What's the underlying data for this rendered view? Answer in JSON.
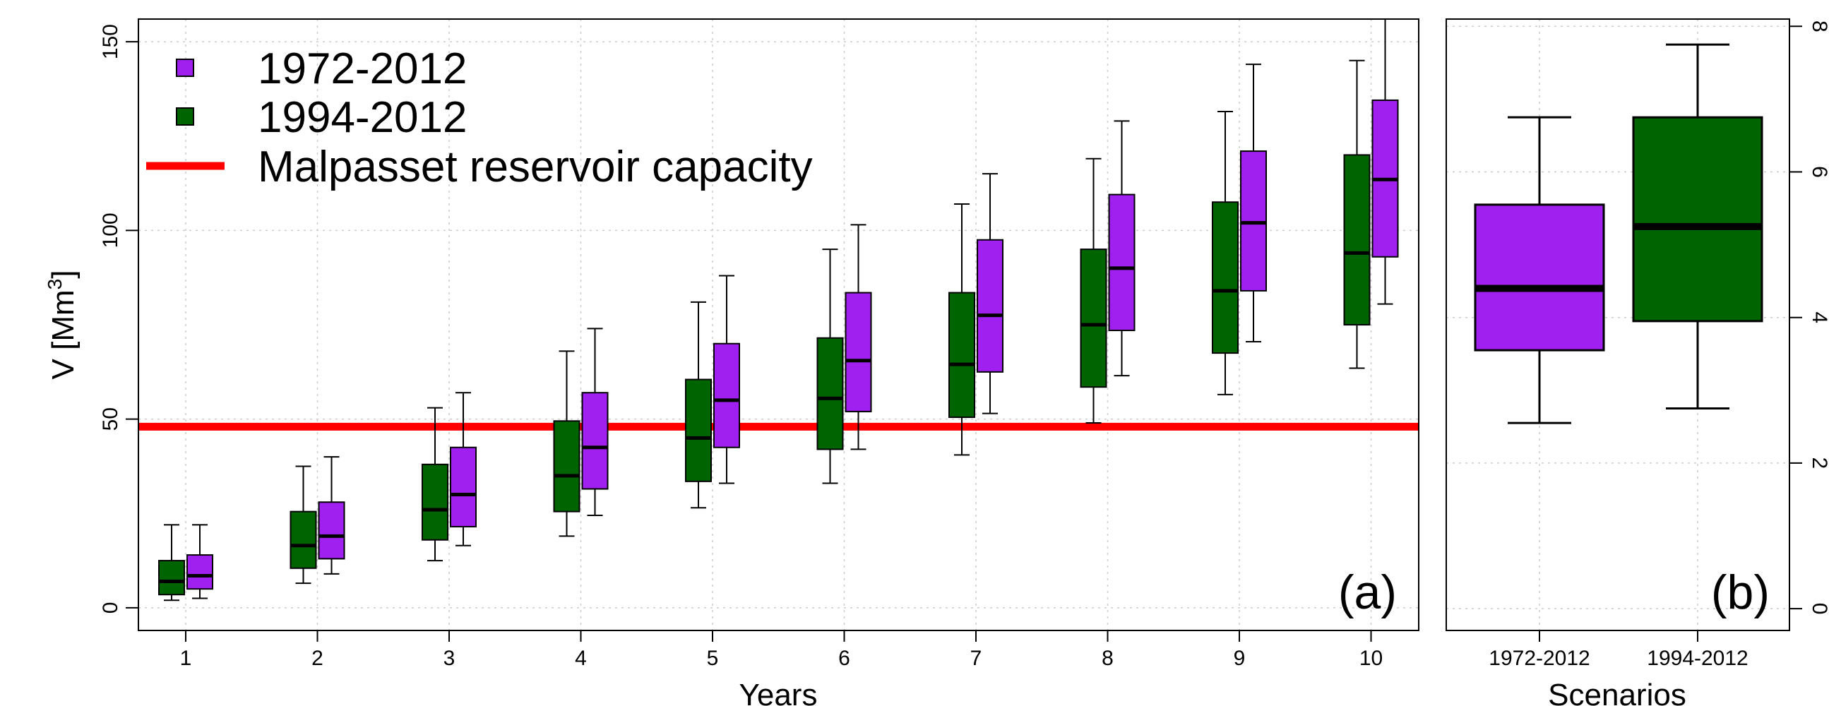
{
  "chart_data": [
    {
      "type": "boxplot",
      "panel_label": "(a)",
      "xlabel": "Years",
      "ylabel": "V [Mm3]",
      "ylim": [
        -6,
        156
      ],
      "yticks": [
        "0",
        "50",
        "100",
        "150"
      ],
      "categories": [
        "1",
        "2",
        "3",
        "4",
        "5",
        "6",
        "7",
        "8",
        "9",
        "10"
      ],
      "grid": true,
      "legend_position": "top-left",
      "legend": [
        {
          "label": "1972-2012",
          "color": "#a020f0",
          "kind": "box"
        },
        {
          "label": "1994-2012",
          "color": "#006400",
          "kind": "box"
        },
        {
          "label": "Malpasset reservoir capacity",
          "color": "#ff0000",
          "kind": "line"
        }
      ],
      "reference_line": {
        "label": "Malpasset reservoir capacity",
        "value": 48,
        "color": "#ff0000"
      },
      "series": [
        {
          "name": "1994-2012",
          "color": "#006400",
          "boxes": [
            {
              "min": 2,
              "q1": 3.5,
              "median": 7,
              "q3": 12.5,
              "max": 22
            },
            {
              "min": 6.5,
              "q1": 10.5,
              "median": 16.5,
              "q3": 25.5,
              "max": 37.5
            },
            {
              "min": 12.5,
              "q1": 18,
              "median": 26,
              "q3": 38,
              "max": 53
            },
            {
              "min": 19,
              "q1": 25.5,
              "median": 35,
              "q3": 49.5,
              "max": 68
            },
            {
              "min": 26.5,
              "q1": 33.5,
              "median": 45,
              "q3": 60.5,
              "max": 81
            },
            {
              "min": 33,
              "q1": 42,
              "median": 55.5,
              "q3": 71.5,
              "max": 95
            },
            {
              "min": 40.5,
              "q1": 50.5,
              "median": 64.5,
              "q3": 83.5,
              "max": 107
            },
            {
              "min": 49,
              "q1": 58.5,
              "median": 75,
              "q3": 95,
              "max": 119
            },
            {
              "min": 56.5,
              "q1": 67.5,
              "median": 84,
              "q3": 107.5,
              "max": 131.5
            },
            {
              "min": 63.5,
              "q1": 75,
              "median": 94,
              "q3": 120,
              "max": 145
            }
          ]
        },
        {
          "name": "1972-2012",
          "color": "#a020f0",
          "boxes": [
            {
              "min": 2.5,
              "q1": 5,
              "median": 8.5,
              "q3": 14,
              "max": 22
            },
            {
              "min": 9,
              "q1": 13,
              "median": 19,
              "q3": 28,
              "max": 40
            },
            {
              "min": 16.5,
              "q1": 21.5,
              "median": 30,
              "q3": 42.5,
              "max": 57
            },
            {
              "min": 24.5,
              "q1": 31.5,
              "median": 42.5,
              "q3": 57,
              "max": 74
            },
            {
              "min": 33,
              "q1": 42.5,
              "median": 55,
              "q3": 70,
              "max": 88
            },
            {
              "min": 42,
              "q1": 52,
              "median": 65.5,
              "q3": 83.5,
              "max": 101.5
            },
            {
              "min": 51.5,
              "q1": 62.5,
              "median": 77.5,
              "q3": 97.5,
              "max": 115
            },
            {
              "min": 61.5,
              "q1": 73.5,
              "median": 90,
              "q3": 109.5,
              "max": 129
            },
            {
              "min": 70.5,
              "q1": 84,
              "median": 102,
              "q3": 121,
              "max": 144
            },
            {
              "min": 80.5,
              "q1": 93,
              "median": 113.5,
              "q3": 134.5,
              "max": 160
            }
          ]
        }
      ]
    },
    {
      "type": "boxplot",
      "panel_label": "(b)",
      "xlabel": "Scenarios",
      "ylim": [
        -0.3,
        8.1
      ],
      "yticks": [
        "0",
        "2",
        "4",
        "6",
        "8"
      ],
      "categories": [
        "1972-2012",
        "1994-2012"
      ],
      "grid": true,
      "boxes": [
        {
          "name": "1972-2012",
          "color": "#a020f0",
          "min": 2.55,
          "q1": 3.55,
          "median": 4.4,
          "q3": 5.55,
          "max": 6.75
        },
        {
          "name": "1994-2012",
          "color": "#006400",
          "min": 2.75,
          "q1": 3.95,
          "median": 5.25,
          "q3": 6.75,
          "max": 7.75
        }
      ]
    }
  ]
}
